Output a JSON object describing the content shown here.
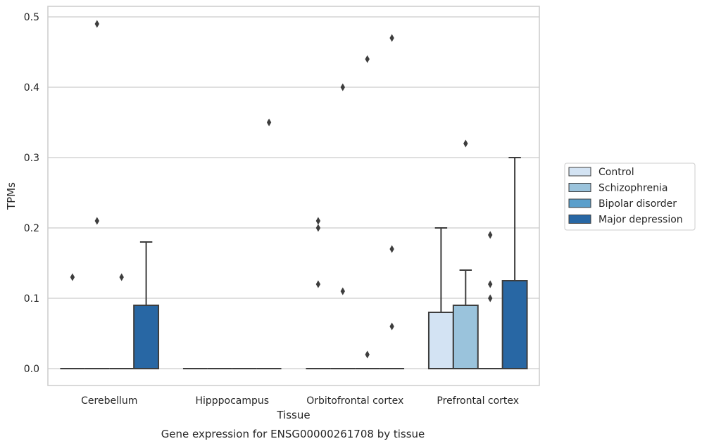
{
  "chart_data": {
    "type": "box",
    "title": "",
    "caption": "Gene expression for ENSG00000261708 by tissue",
    "xlabel": "Tissue",
    "ylabel": "TPMs",
    "ylim": [
      -0.024,
      0.515
    ],
    "yticks": [
      "0.0",
      "0.1",
      "0.2",
      "0.3",
      "0.4",
      "0.5"
    ],
    "ytick_values": [
      0,
      0.1,
      0.2,
      0.3,
      0.4,
      0.5
    ],
    "grid": true,
    "legend_position": "right",
    "categories": [
      "Cerebellum",
      "Hipppocampus",
      "Orbitofrontal cortex",
      "Prefrontal cortex"
    ],
    "series": [
      {
        "name": "Control",
        "color": "#d3e3f3",
        "boxes": [
          {
            "q1": 0,
            "median": 0,
            "q3": 0,
            "whisker_low": 0,
            "whisker_high": 0,
            "outliers": [
              0.13
            ]
          },
          {
            "q1": 0,
            "median": 0,
            "q3": 0,
            "whisker_low": 0,
            "whisker_high": 0,
            "outliers": []
          },
          {
            "q1": 0,
            "median": 0,
            "q3": 0,
            "whisker_low": 0,
            "whisker_high": 0,
            "outliers": [
              0.21,
              0.2,
              0.12
            ]
          },
          {
            "q1": 0,
            "median": 0,
            "q3": 0.08,
            "whisker_low": 0,
            "whisker_high": 0.2,
            "outliers": []
          }
        ]
      },
      {
        "name": "Schizophrenia",
        "color": "#9ac3dc",
        "boxes": [
          {
            "q1": 0,
            "median": 0,
            "q3": 0,
            "whisker_low": 0,
            "whisker_high": 0,
            "outliers": [
              0.49,
              0.21
            ]
          },
          {
            "q1": 0,
            "median": 0,
            "q3": 0,
            "whisker_low": 0,
            "whisker_high": 0,
            "outliers": []
          },
          {
            "q1": 0,
            "median": 0,
            "q3": 0,
            "whisker_low": 0,
            "whisker_high": 0,
            "outliers": [
              0.4,
              0.11
            ]
          },
          {
            "q1": 0,
            "median": 0,
            "q3": 0.09,
            "whisker_low": 0,
            "whisker_high": 0.14,
            "outliers": [
              0.32
            ]
          }
        ]
      },
      {
        "name": "Bipolar disorder",
        "color": "#5a9fcb",
        "boxes": [
          {
            "q1": 0,
            "median": 0,
            "q3": 0,
            "whisker_low": 0,
            "whisker_high": 0,
            "outliers": [
              0.13
            ]
          },
          {
            "q1": 0,
            "median": 0,
            "q3": 0,
            "whisker_low": 0,
            "whisker_high": 0,
            "outliers": []
          },
          {
            "q1": 0,
            "median": 0,
            "q3": 0,
            "whisker_low": 0,
            "whisker_high": 0,
            "outliers": [
              0.44,
              0.02
            ]
          },
          {
            "q1": 0,
            "median": 0,
            "q3": 0,
            "whisker_low": 0,
            "whisker_high": 0,
            "outliers": [
              0.19,
              0.12,
              0.1
            ]
          }
        ]
      },
      {
        "name": "Major depression",
        "color": "#2867a4",
        "boxes": [
          {
            "q1": 0,
            "median": 0,
            "q3": 0.09,
            "whisker_low": 0,
            "whisker_high": 0.18,
            "outliers": []
          },
          {
            "q1": 0,
            "median": 0,
            "q3": 0,
            "whisker_low": 0,
            "whisker_high": 0,
            "outliers": [
              0.35
            ]
          },
          {
            "q1": 0,
            "median": 0,
            "q3": 0,
            "whisker_low": 0,
            "whisker_high": 0,
            "outliers": [
              0.47,
              0.17,
              0.06
            ]
          },
          {
            "q1": 0,
            "median": 0,
            "q3": 0.125,
            "whisker_low": 0,
            "whisker_high": 0.3,
            "outliers": []
          }
        ]
      }
    ]
  }
}
